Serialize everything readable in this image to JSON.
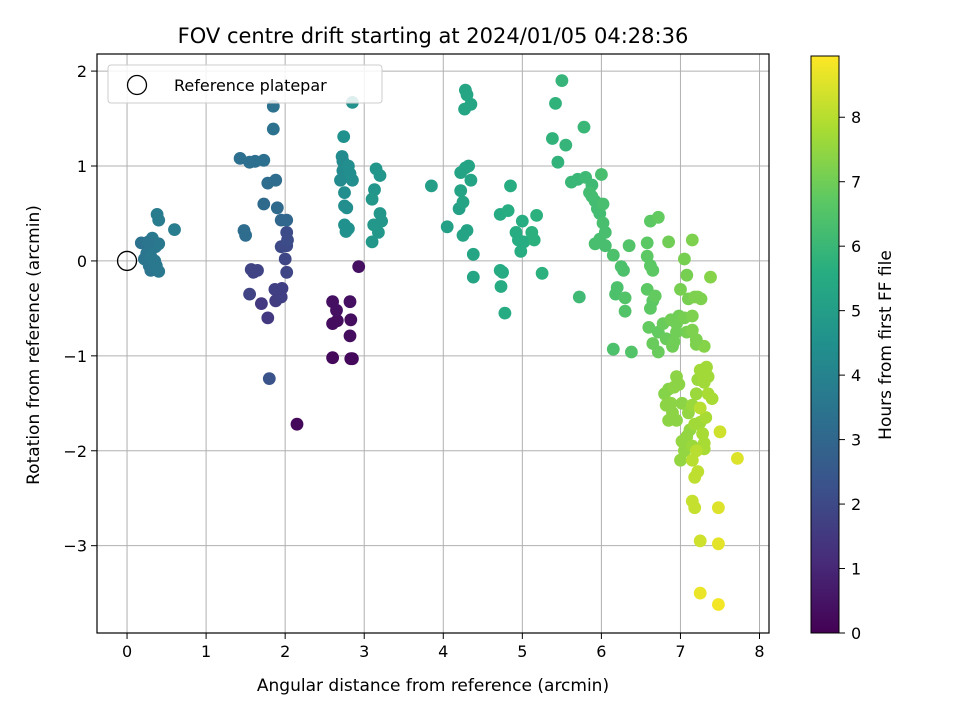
{
  "chart_data": {
    "type": "scatter",
    "title": "FOV centre drift starting at 2024/01/05 04:28:36",
    "xlabel": "Angular distance from reference (arcmin)",
    "ylabel": "Rotation from reference (arcmin)",
    "xlim": [
      -0.38,
      8.12
    ],
    "ylim": [
      -3.92,
      2.18
    ],
    "xticks": [
      0,
      1,
      2,
      3,
      4,
      5,
      6,
      7,
      8
    ],
    "yticks": [
      -3,
      -2,
      -1,
      0,
      1,
      2
    ],
    "grid": true,
    "legend": {
      "position": "top-left",
      "entries": [
        "Reference platepar"
      ]
    },
    "reference_point": {
      "x": 0,
      "y": 0,
      "label": "Reference platepar"
    },
    "colorbar": {
      "label": "Hours from first FF file",
      "range": [
        0,
        8.95
      ],
      "ticks": [
        0,
        1,
        2,
        3,
        4,
        5,
        6,
        7,
        8
      ],
      "colormap": "viridis"
    },
    "points": [
      [
        2.15,
        -1.72,
        0.2
      ],
      [
        2.6,
        -1.02,
        0.2
      ],
      [
        2.83,
        -1.03,
        0.2
      ],
      [
        2.85,
        -1.03,
        0.2
      ],
      [
        2.82,
        -0.79,
        0.3
      ],
      [
        2.6,
        -0.66,
        0.3
      ],
      [
        2.66,
        -0.63,
        0.3
      ],
      [
        2.83,
        -0.62,
        0.3
      ],
      [
        2.65,
        -0.52,
        0.4
      ],
      [
        2.6,
        -0.43,
        0.4
      ],
      [
        2.82,
        -0.43,
        0.4
      ],
      [
        2.93,
        -0.06,
        0.4
      ],
      [
        1.7,
        -0.45,
        1.5
      ],
      [
        1.78,
        -0.6,
        1.5
      ],
      [
        1.88,
        -0.42,
        1.6
      ],
      [
        1.95,
        -0.38,
        1.7
      ],
      [
        1.96,
        -0.29,
        1.7
      ],
      [
        1.87,
        -0.3,
        1.7
      ],
      [
        1.55,
        -0.35,
        1.8
      ],
      [
        1.6,
        -0.12,
        1.8
      ],
      [
        1.65,
        -0.1,
        1.8
      ],
      [
        1.57,
        -0.09,
        1.8
      ],
      [
        2.02,
        -0.12,
        1.9
      ],
      [
        2.0,
        0.02,
        1.9
      ],
      [
        1.95,
        0.15,
        2.0
      ],
      [
        2.02,
        0.16,
        2.0
      ],
      [
        2.03,
        0.22,
        2.1
      ],
      [
        2.02,
        0.3,
        2.1
      ],
      [
        1.8,
        -1.24,
        2.3
      ],
      [
        1.95,
        0.43,
        3.0
      ],
      [
        2.02,
        0.43,
        3.0
      ],
      [
        1.9,
        0.56,
        3.1
      ],
      [
        1.73,
        0.6,
        3.1
      ],
      [
        1.88,
        0.85,
        3.2
      ],
      [
        1.78,
        0.82,
        3.2
      ],
      [
        1.43,
        1.08,
        3.3
      ],
      [
        1.62,
        1.05,
        3.3
      ],
      [
        1.73,
        1.06,
        3.3
      ],
      [
        1.55,
        1.04,
        3.3
      ],
      [
        1.85,
        1.39,
        3.4
      ],
      [
        1.85,
        1.63,
        3.4
      ],
      [
        1.48,
        0.32,
        3.2
      ],
      [
        1.5,
        0.27,
        3.2
      ],
      [
        0.18,
        0.19,
        3.4
      ],
      [
        0.25,
        0.08,
        3.5
      ],
      [
        0.22,
        0.02,
        3.5
      ],
      [
        0.28,
        -0.05,
        3.5
      ],
      [
        0.3,
        -0.1,
        3.5
      ],
      [
        0.37,
        -0.05,
        3.6
      ],
      [
        0.4,
        -0.11,
        3.6
      ],
      [
        0.32,
        0.24,
        3.6
      ],
      [
        0.36,
        0.15,
        3.6
      ],
      [
        0.4,
        0.18,
        3.6
      ],
      [
        0.38,
        0.49,
        3.7
      ],
      [
        0.4,
        0.43,
        3.7
      ],
      [
        0.3,
        0.05,
        3.6
      ],
      [
        0.35,
        0.0,
        3.6
      ],
      [
        0.6,
        0.33,
        3.8
      ],
      [
        0.27,
        0.2,
        3.5
      ],
      [
        2.7,
        0.85,
        4.3
      ],
      [
        2.73,
        0.95,
        4.3
      ],
      [
        2.73,
        1.05,
        4.3
      ],
      [
        2.72,
        1.1,
        4.3
      ],
      [
        2.8,
        1.0,
        4.4
      ],
      [
        2.85,
        0.85,
        4.4
      ],
      [
        2.75,
        0.72,
        4.4
      ],
      [
        2.75,
        0.58,
        4.4
      ],
      [
        2.78,
        0.56,
        4.4
      ],
      [
        2.74,
        1.31,
        4.5
      ],
      [
        2.82,
        0.92,
        4.4
      ],
      [
        2.75,
        0.38,
        4.5
      ],
      [
        2.77,
        0.31,
        4.5
      ],
      [
        2.8,
        0.34,
        4.5
      ],
      [
        2.85,
        1.67,
        4.6
      ],
      [
        3.15,
        0.97,
        4.7
      ],
      [
        3.2,
        0.9,
        4.7
      ],
      [
        3.13,
        0.75,
        4.7
      ],
      [
        3.1,
        0.65,
        4.8
      ],
      [
        3.2,
        0.5,
        4.8
      ],
      [
        3.22,
        0.42,
        4.8
      ],
      [
        3.12,
        0.38,
        4.8
      ],
      [
        3.18,
        0.3,
        4.8
      ],
      [
        3.1,
        0.2,
        4.8
      ],
      [
        3.85,
        0.79,
        5.0
      ],
      [
        4.05,
        0.36,
        5.1
      ],
      [
        4.2,
        0.55,
        5.1
      ],
      [
        4.25,
        0.62,
        5.2
      ],
      [
        4.22,
        0.74,
        5.2
      ],
      [
        4.3,
        0.32,
        5.2
      ],
      [
        4.25,
        0.27,
        5.2
      ],
      [
        4.38,
        0.07,
        5.3
      ],
      [
        4.38,
        -0.17,
        5.3
      ],
      [
        4.35,
        0.85,
        5.2
      ],
      [
        4.22,
        0.93,
        5.2
      ],
      [
        4.28,
        0.98,
        5.2
      ],
      [
        4.32,
        1.0,
        5.2
      ],
      [
        4.28,
        1.8,
        5.3
      ],
      [
        4.3,
        1.75,
        5.3
      ],
      [
        4.35,
        1.65,
        5.3
      ],
      [
        4.27,
        1.6,
        5.3
      ],
      [
        4.72,
        -0.1,
        5.5
      ],
      [
        4.75,
        -0.12,
        5.5
      ],
      [
        4.73,
        -0.27,
        5.5
      ],
      [
        4.78,
        -0.55,
        5.5
      ],
      [
        4.72,
        0.49,
        5.5
      ],
      [
        4.82,
        0.53,
        5.6
      ],
      [
        4.85,
        0.79,
        5.6
      ],
      [
        4.92,
        0.3,
        5.6
      ],
      [
        4.95,
        0.22,
        5.6
      ],
      [
        4.98,
        0.1,
        5.6
      ],
      [
        5.0,
        0.42,
        5.6
      ],
      [
        5.02,
        0.2,
        5.6
      ],
      [
        5.12,
        0.3,
        5.7
      ],
      [
        5.15,
        0.22,
        5.7
      ],
      [
        5.18,
        0.48,
        5.7
      ],
      [
        5.25,
        -0.13,
        5.7
      ],
      [
        5.38,
        1.29,
        5.8
      ],
      [
        5.45,
        1.04,
        5.8
      ],
      [
        5.42,
        1.66,
        5.8
      ],
      [
        5.55,
        1.22,
        5.9
      ],
      [
        5.5,
        1.9,
        5.9
      ],
      [
        5.62,
        0.83,
        6.0
      ],
      [
        5.7,
        0.86,
        6.0
      ],
      [
        5.78,
        1.41,
        6.0
      ],
      [
        5.72,
        -0.38,
        6.1
      ],
      [
        5.8,
        0.88,
        6.1
      ],
      [
        5.88,
        0.8,
        6.1
      ],
      [
        5.85,
        0.72,
        6.2
      ],
      [
        5.92,
        0.63,
        6.2
      ],
      [
        5.95,
        0.55,
        6.2
      ],
      [
        5.98,
        0.5,
        6.2
      ],
      [
        6.02,
        0.6,
        6.3
      ],
      [
        5.88,
        0.68,
        6.2
      ],
      [
        6.0,
        0.91,
        6.3
      ],
      [
        6.02,
        0.4,
        6.3
      ],
      [
        6.05,
        0.3,
        6.3
      ],
      [
        5.98,
        0.23,
        6.3
      ],
      [
        5.92,
        0.18,
        6.3
      ],
      [
        6.05,
        0.16,
        6.3
      ],
      [
        6.15,
        0.06,
        6.4
      ],
      [
        6.2,
        -0.28,
        6.4
      ],
      [
        6.18,
        -0.35,
        6.4
      ],
      [
        6.28,
        -0.1,
        6.4
      ],
      [
        6.25,
        -0.06,
        6.4
      ],
      [
        6.15,
        -0.93,
        6.4
      ],
      [
        6.3,
        -0.39,
        6.5
      ],
      [
        6.3,
        -0.53,
        6.5
      ],
      [
        6.35,
        0.16,
        6.5
      ],
      [
        6.38,
        -0.96,
        6.5
      ],
      [
        6.58,
        0.19,
        6.7
      ],
      [
        6.62,
        0.42,
        6.7
      ],
      [
        6.72,
        0.46,
        6.8
      ],
      [
        6.58,
        0.05,
        6.7
      ],
      [
        6.62,
        -0.05,
        6.7
      ],
      [
        6.65,
        -0.1,
        6.7
      ],
      [
        6.58,
        -0.3,
        6.7
      ],
      [
        6.62,
        -0.5,
        6.7
      ],
      [
        6.65,
        -0.42,
        6.7
      ],
      [
        6.68,
        -0.37,
        6.8
      ],
      [
        6.6,
        -0.7,
        6.8
      ],
      [
        6.72,
        -0.75,
        6.8
      ],
      [
        6.65,
        -0.87,
        6.9
      ],
      [
        6.72,
        -0.96,
        6.9
      ],
      [
        6.78,
        -0.66,
        6.9
      ],
      [
        6.82,
        -0.82,
        6.9
      ],
      [
        6.88,
        -0.62,
        7.0
      ],
      [
        6.85,
        0.2,
        7.0
      ],
      [
        6.92,
        -0.85,
        7.0
      ],
      [
        6.95,
        -0.66,
        7.0
      ],
      [
        6.98,
        -0.58,
        7.0
      ],
      [
        7.0,
        -0.3,
        7.1
      ],
      [
        7.05,
        -0.6,
        7.1
      ],
      [
        7.08,
        -0.75,
        7.1
      ],
      [
        7.1,
        -0.4,
        7.1
      ],
      [
        7.15,
        -0.58,
        7.2
      ],
      [
        7.18,
        -0.38,
        7.2
      ],
      [
        7.2,
        -0.88,
        7.2
      ],
      [
        7.22,
        -0.38,
        7.2
      ],
      [
        7.26,
        -0.4,
        7.2
      ],
      [
        7.3,
        -0.9,
        7.3
      ],
      [
        7.05,
        0.02,
        7.1
      ],
      [
        7.08,
        -0.15,
        7.1
      ],
      [
        7.15,
        0.22,
        7.2
      ],
      [
        7.38,
        -0.17,
        7.3
      ],
      [
        7.15,
        -0.73,
        7.2
      ],
      [
        7.2,
        -0.83,
        7.2
      ],
      [
        6.9,
        -0.9,
        7.0
      ],
      [
        6.95,
        -0.75,
        7.0
      ],
      [
        6.8,
        -1.4,
        7.3
      ],
      [
        6.85,
        -1.35,
        7.3
      ],
      [
        6.82,
        -1.52,
        7.4
      ],
      [
        6.88,
        -1.5,
        7.4
      ],
      [
        6.9,
        -1.6,
        7.4
      ],
      [
        6.92,
        -1.33,
        7.4
      ],
      [
        6.95,
        -1.22,
        7.4
      ],
      [
        6.98,
        -1.3,
        7.4
      ],
      [
        7.02,
        -1.5,
        7.4
      ],
      [
        6.95,
        -1.68,
        7.4
      ],
      [
        7.02,
        -1.9,
        7.5
      ],
      [
        7.05,
        -2.0,
        7.5
      ],
      [
        7.0,
        -2.1,
        7.5
      ],
      [
        6.85,
        -1.68,
        7.4
      ],
      [
        7.08,
        -1.85,
        7.5
      ],
      [
        7.12,
        -1.78,
        7.5
      ],
      [
        7.15,
        -1.95,
        7.6
      ],
      [
        7.1,
        -1.6,
        7.5
      ],
      [
        7.15,
        -1.52,
        7.6
      ],
      [
        7.2,
        -1.4,
        7.6
      ],
      [
        7.22,
        -1.25,
        7.6
      ],
      [
        7.25,
        -1.7,
        7.7
      ],
      [
        7.25,
        -1.15,
        7.7
      ],
      [
        7.28,
        -1.2,
        7.7
      ],
      [
        7.3,
        -1.28,
        7.7
      ],
      [
        7.33,
        -1.12,
        7.7
      ],
      [
        7.35,
        -1.22,
        7.7
      ],
      [
        7.35,
        -1.4,
        7.8
      ],
      [
        7.4,
        -1.45,
        7.8
      ],
      [
        7.32,
        -1.65,
        7.8
      ],
      [
        7.3,
        -1.92,
        7.8
      ],
      [
        7.3,
        -1.98,
        7.8
      ],
      [
        7.28,
        -1.82,
        7.8
      ],
      [
        7.18,
        -1.72,
        7.7
      ],
      [
        7.15,
        -2.1,
        8.0
      ],
      [
        7.18,
        -2.28,
        8.1
      ],
      [
        7.22,
        -2.22,
        8.1
      ],
      [
        7.2,
        -2.0,
        8.0
      ],
      [
        7.25,
        -1.55,
        8.0
      ],
      [
        7.15,
        -2.53,
        8.2
      ],
      [
        7.18,
        -2.6,
        8.2
      ],
      [
        7.25,
        -2.95,
        8.3
      ],
      [
        7.5,
        -1.8,
        8.3
      ],
      [
        7.48,
        -2.6,
        8.5
      ],
      [
        7.48,
        -2.98,
        8.6
      ],
      [
        7.25,
        -3.5,
        8.7
      ],
      [
        7.48,
        -3.62,
        8.8
      ],
      [
        7.72,
        -2.08,
        8.5
      ]
    ]
  }
}
